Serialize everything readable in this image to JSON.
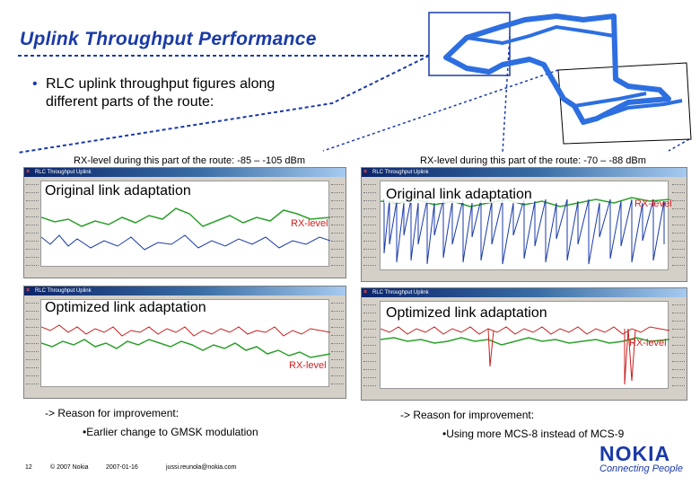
{
  "slide": {
    "title": "Uplink Throughput Performance",
    "bullet": "RLC uplink throughput figures along different parts of the route:"
  },
  "captions": {
    "left": "RX-level during this part of the route: -85 – -105 dBm",
    "right": "RX-level during this part of the route: -70 – -88 dBm"
  },
  "windows": {
    "title": "RLC Throughput Uplink",
    "top_left_label": "Original link adaptation",
    "top_right_label": "Original link adaptation",
    "bottom_left_label": "Optimized link adaptation",
    "bottom_right_label": "Optimized link adaptation",
    "rx_label": "RX-level"
  },
  "reasons": {
    "left_heading": "-> Reason for improvement:",
    "left_detail": "•Earlier change to GMSK modulation",
    "right_heading": "-> Reason for improvement:",
    "right_detail": "•Using more MCS-8 instead of MCS-9"
  },
  "footer": {
    "page": "12",
    "copyright": "© 2007 Nokia",
    "date": "2007-01-16",
    "email": "jussi.reunola@nokia.com"
  },
  "logo": {
    "brand": "NOKIA",
    "tagline": "Connecting People"
  },
  "colors": {
    "title": "#1a3aa8",
    "throughput_trace": "#1a3aa8",
    "rx_trace": "#2ca02c",
    "rx_label": "#d81b1b",
    "highlight_trace": "#c81e1e"
  },
  "icons": [
    "close-icon",
    "route-map-icon"
  ]
}
